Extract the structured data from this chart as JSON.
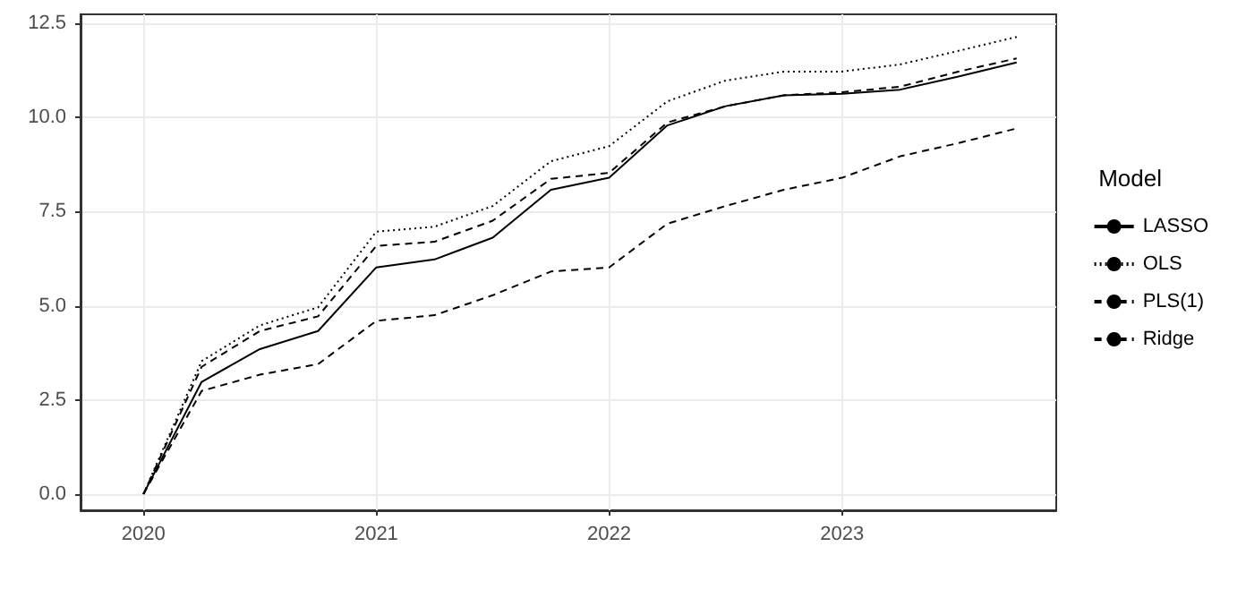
{
  "chart_data": {
    "type": "line",
    "legend_title": "Model",
    "legend": "right",
    "grid": true,
    "marker": "none",
    "x": [
      2020,
      2020.25,
      2020.5,
      2020.75,
      2021,
      2021.25,
      2021.5,
      2021.75,
      2022,
      2022.25,
      2022.5,
      2022.75,
      2023,
      2023.25,
      2023.5,
      2023.75
    ],
    "xlim": [
      2019.73,
      2023.92
    ],
    "xticks": [
      2020,
      2021,
      2022,
      2023
    ],
    "ylim": [
      -0.43,
      12.74
    ],
    "yticks": [
      {
        "value": 0,
        "label": "0.0"
      },
      {
        "value": 2.5,
        "label": "2.5"
      },
      {
        "value": 5,
        "label": "5.0"
      },
      {
        "value": 7.5,
        "label": "7.5"
      },
      {
        "value": 10,
        "label": "10.0"
      },
      {
        "value": 12.5,
        "label": "12.5"
      }
    ],
    "series": [
      {
        "name": "LASSO",
        "color": "#000000",
        "line_style": "solid",
        "values": [
          0,
          2.98,
          3.85,
          4.33,
          6.02,
          6.23,
          6.81,
          8.08,
          8.4,
          9.79,
          10.3,
          10.59,
          10.63,
          10.74,
          11.09,
          11.46
        ]
      },
      {
        "name": "OLS",
        "color": "#000000",
        "line_style": "dotted",
        "values": [
          0,
          3.53,
          4.48,
          4.96,
          6.97,
          7.1,
          7.65,
          8.84,
          9.24,
          10.43,
          10.98,
          11.22,
          11.22,
          11.41,
          11.77,
          12.14
        ]
      },
      {
        "name": "PLS(1)",
        "color": "#000000",
        "line_style": "dashed",
        "values": [
          0,
          3.38,
          4.33,
          4.72,
          6.59,
          6.7,
          7.26,
          8.37,
          8.53,
          9.87,
          10.3,
          10.59,
          10.67,
          10.82,
          11.22,
          11.57
        ]
      },
      {
        "name": "Ridge",
        "color": "#000000",
        "line_style": "dashed",
        "values": [
          0,
          2.74,
          3.17,
          3.45,
          4.6,
          4.75,
          5.28,
          5.91,
          6.02,
          7.18,
          7.65,
          8.08,
          8.4,
          8.97,
          9.32,
          9.71
        ]
      }
    ]
  }
}
